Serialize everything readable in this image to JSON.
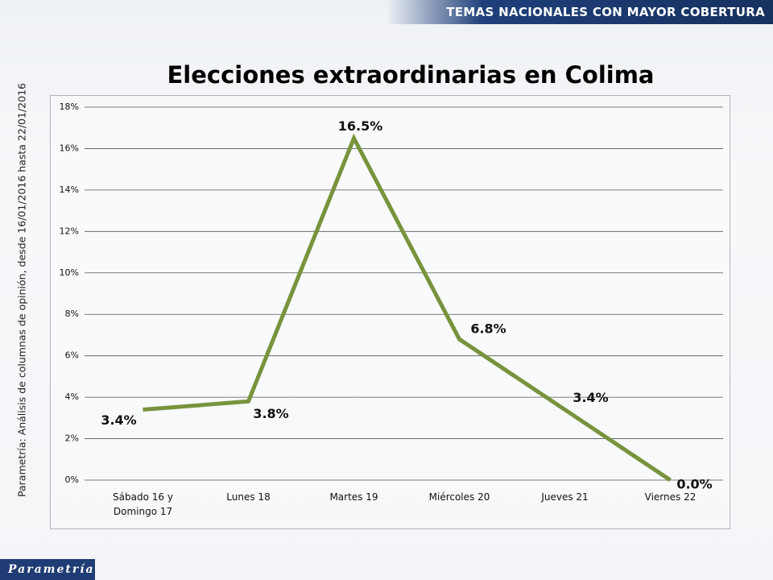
{
  "header": "TEMAS NACIONALES CON MAYOR COBERTURA",
  "source": "Parametría: Análisis de columnas de opinión, desde 16/01/2016 hasta 22/01/2016",
  "logo": "Parametría",
  "chart_data": {
    "type": "line",
    "title": "Elecciones extraordinarias en Colima",
    "categories": [
      "Sábado 16 y Domingo 17",
      "Lunes 18",
      "Martes 19",
      "Miércoles 20",
      "Jueves 21",
      "Viernes 22"
    ],
    "values": [
      3.4,
      3.8,
      16.5,
      6.8,
      3.4,
      0.0
    ],
    "value_labels": [
      "3.4%",
      "3.8%",
      "16.5%",
      "6.8%",
      "3.4%",
      "0.0%"
    ],
    "color": "#77933c",
    "ylim": [
      0,
      18
    ],
    "yticks": [
      {
        "value": 0,
        "label": "0%"
      },
      {
        "value": 2,
        "label": "2%"
      },
      {
        "value": 4,
        "label": "4%"
      },
      {
        "value": 6,
        "label": "6%"
      },
      {
        "value": 8,
        "label": "8%"
      },
      {
        "value": 10,
        "label": "10%"
      },
      {
        "value": 12,
        "label": "12%"
      },
      {
        "value": 14,
        "label": "14%"
      },
      {
        "value": 16,
        "label": "16%"
      },
      {
        "value": 18,
        "label": "18%"
      }
    ],
    "grid": true
  }
}
